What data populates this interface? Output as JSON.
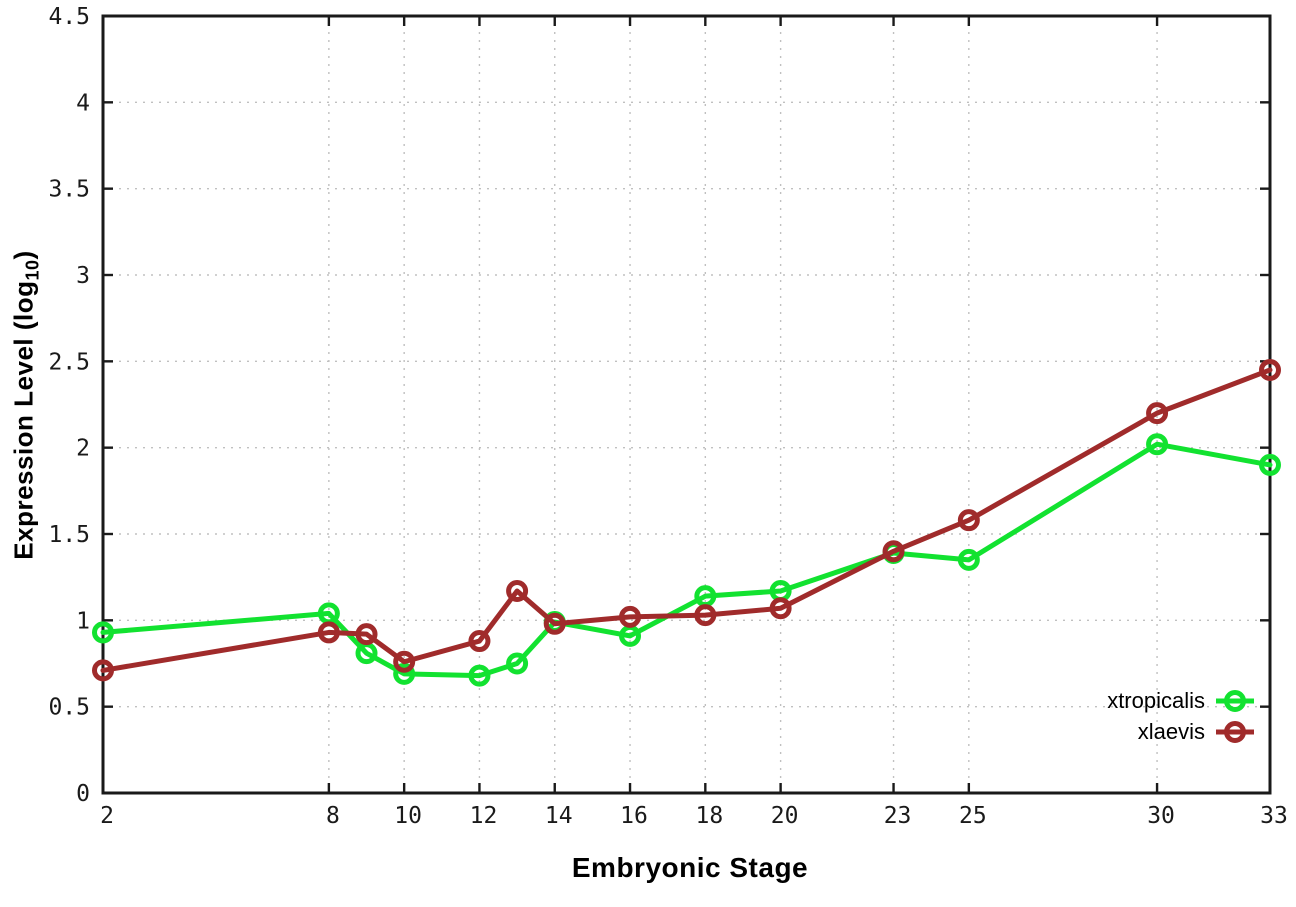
{
  "chart_data": {
    "type": "line",
    "title": "",
    "xlabel": "Embryonic Stage",
    "ylabel_prefix": "Expression Level (log",
    "ylabel_sub": "10",
    "ylabel_suffix": ")",
    "xlim": [
      2,
      33
    ],
    "ylim": [
      0,
      4.5
    ],
    "grid": true,
    "legend_position": "inside-bottom-right",
    "x_tick_labels": [
      "2",
      "8",
      "10",
      "12",
      "14",
      "16",
      "18",
      "20",
      "23",
      "25",
      "30",
      "33"
    ],
    "x_tick_values": [
      2,
      8,
      10,
      12,
      14,
      16,
      18,
      20,
      23,
      25,
      30,
      33
    ],
    "y_tick_labels": [
      "0",
      "0.5",
      "1",
      "1.5",
      "2",
      "2.5",
      "3",
      "3.5",
      "4",
      "4.5"
    ],
    "y_tick_values": [
      0,
      0.5,
      1,
      1.5,
      2,
      2.5,
      3,
      3.5,
      4,
      4.5
    ],
    "x": [
      2,
      8,
      9,
      10,
      12,
      13,
      14,
      16,
      18,
      20,
      23,
      25,
      30,
      33
    ],
    "series": [
      {
        "name": "xtropicalis",
        "color": "#12e230",
        "marker": "open-circle",
        "values": [
          0.93,
          1.04,
          0.81,
          0.69,
          0.68,
          0.75,
          0.99,
          0.91,
          1.14,
          1.17,
          1.39,
          1.35,
          2.02,
          1.9
        ]
      },
      {
        "name": "xlaevis",
        "color": "#a02b2b",
        "marker": "open-circle",
        "values": [
          0.71,
          0.93,
          0.92,
          0.76,
          0.88,
          1.17,
          0.98,
          1.02,
          1.03,
          1.07,
          1.4,
          1.58,
          2.2,
          2.45
        ]
      }
    ],
    "colors": {
      "axis": "#1a1a1a",
      "grid": "#c0c0c0",
      "background": "#ffffff",
      "tick_text": "#1a1a1a"
    }
  }
}
